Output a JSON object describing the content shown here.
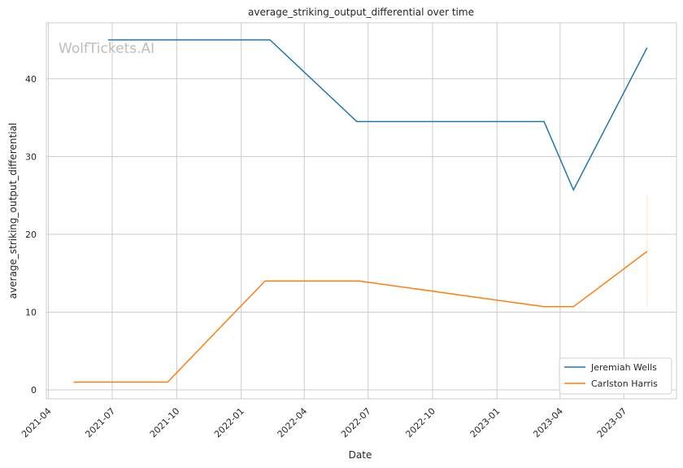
{
  "chart_data": {
    "type": "line",
    "title": "average_striking_output_differential over time",
    "xlabel": "Date",
    "ylabel": "average_striking_output_differential",
    "watermark": "WolfTickets.AI",
    "xlim": [
      "2021-03-29",
      "2023-09-14"
    ],
    "ylim": [
      -1.15,
      47.2
    ],
    "x_ticks": [
      "2021-04",
      "2021-07",
      "2021-10",
      "2022-01",
      "2022-04",
      "2022-07",
      "2022-10",
      "2023-01",
      "2023-04",
      "2023-07"
    ],
    "y_ticks": [
      0,
      10,
      20,
      30,
      40
    ],
    "grid": true,
    "legend_position": "lower-right",
    "series": [
      {
        "name": "Jeremiah Wells",
        "color": "#1f77b4",
        "x": [
          "2021-06-25",
          "2022-02-11",
          "2022-06-15",
          "2023-03-09",
          "2023-04-20",
          "2023-08-03"
        ],
        "y": [
          45.0,
          45.0,
          34.5,
          34.5,
          25.7,
          44.0
        ]
      },
      {
        "name": "Carlston Harris",
        "color": "#ff7f0e",
        "x": [
          "2021-05-07",
          "2021-09-18",
          "2022-02-04",
          "2022-06-18",
          "2023-03-09",
          "2023-04-20",
          "2023-08-03"
        ],
        "y": [
          1.0,
          1.0,
          14.0,
          14.0,
          10.7,
          10.7,
          17.8
        ],
        "error_band": {
          "x": "2023-08-03",
          "low": 10.6,
          "high": 25.0
        }
      }
    ]
  }
}
